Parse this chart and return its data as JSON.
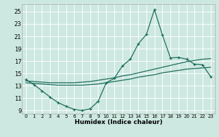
{
  "xlabel": "Humidex (Indice chaleur)",
  "xlim": [
    -0.5,
    23.5
  ],
  "ylim": [
    8.5,
    26.2
  ],
  "yticks": [
    9,
    11,
    13,
    15,
    17,
    19,
    21,
    23,
    25
  ],
  "xticks": [
    0,
    1,
    2,
    3,
    4,
    5,
    6,
    7,
    8,
    9,
    10,
    11,
    12,
    13,
    14,
    15,
    16,
    17,
    18,
    19,
    20,
    21,
    22,
    23
  ],
  "bg_color": "#cde8e0",
  "line_color": "#1a6b5a",
  "grid_color": "#ffffff",
  "line1_x": [
    0,
    1,
    2,
    3,
    4,
    5,
    6,
    7,
    8,
    9,
    10,
    11,
    12,
    13,
    14,
    15,
    16,
    17,
    18,
    19,
    20,
    21,
    22,
    23
  ],
  "line1_y": [
    14.0,
    13.2,
    12.2,
    11.2,
    10.3,
    9.7,
    9.2,
    9.0,
    9.3,
    10.5,
    13.5,
    14.2,
    16.2,
    17.3,
    19.8,
    21.3,
    25.3,
    21.2,
    17.5,
    17.6,
    17.3,
    16.5,
    16.4,
    14.5
  ],
  "line2_x": [
    0,
    1,
    2,
    3,
    4,
    5,
    6,
    7,
    8,
    9,
    10,
    11,
    12,
    13,
    14,
    15,
    16,
    17,
    18,
    19,
    20,
    21,
    22,
    23
  ],
  "line2_y": [
    13.8,
    13.7,
    13.6,
    13.5,
    13.5,
    13.5,
    13.5,
    13.6,
    13.7,
    13.9,
    14.1,
    14.3,
    14.6,
    14.8,
    15.1,
    15.4,
    15.7,
    16.0,
    16.3,
    16.6,
    16.9,
    17.1,
    17.3,
    17.4
  ],
  "line3_x": [
    0,
    1,
    2,
    3,
    4,
    5,
    6,
    7,
    8,
    9,
    10,
    11,
    12,
    13,
    14,
    15,
    16,
    17,
    18,
    19,
    20,
    21,
    22,
    23
  ],
  "line3_y": [
    13.5,
    13.4,
    13.3,
    13.2,
    13.1,
    13.1,
    13.1,
    13.1,
    13.2,
    13.3,
    13.5,
    13.7,
    13.9,
    14.1,
    14.4,
    14.6,
    14.8,
    15.1,
    15.3,
    15.5,
    15.7,
    15.8,
    15.9,
    16.0
  ]
}
